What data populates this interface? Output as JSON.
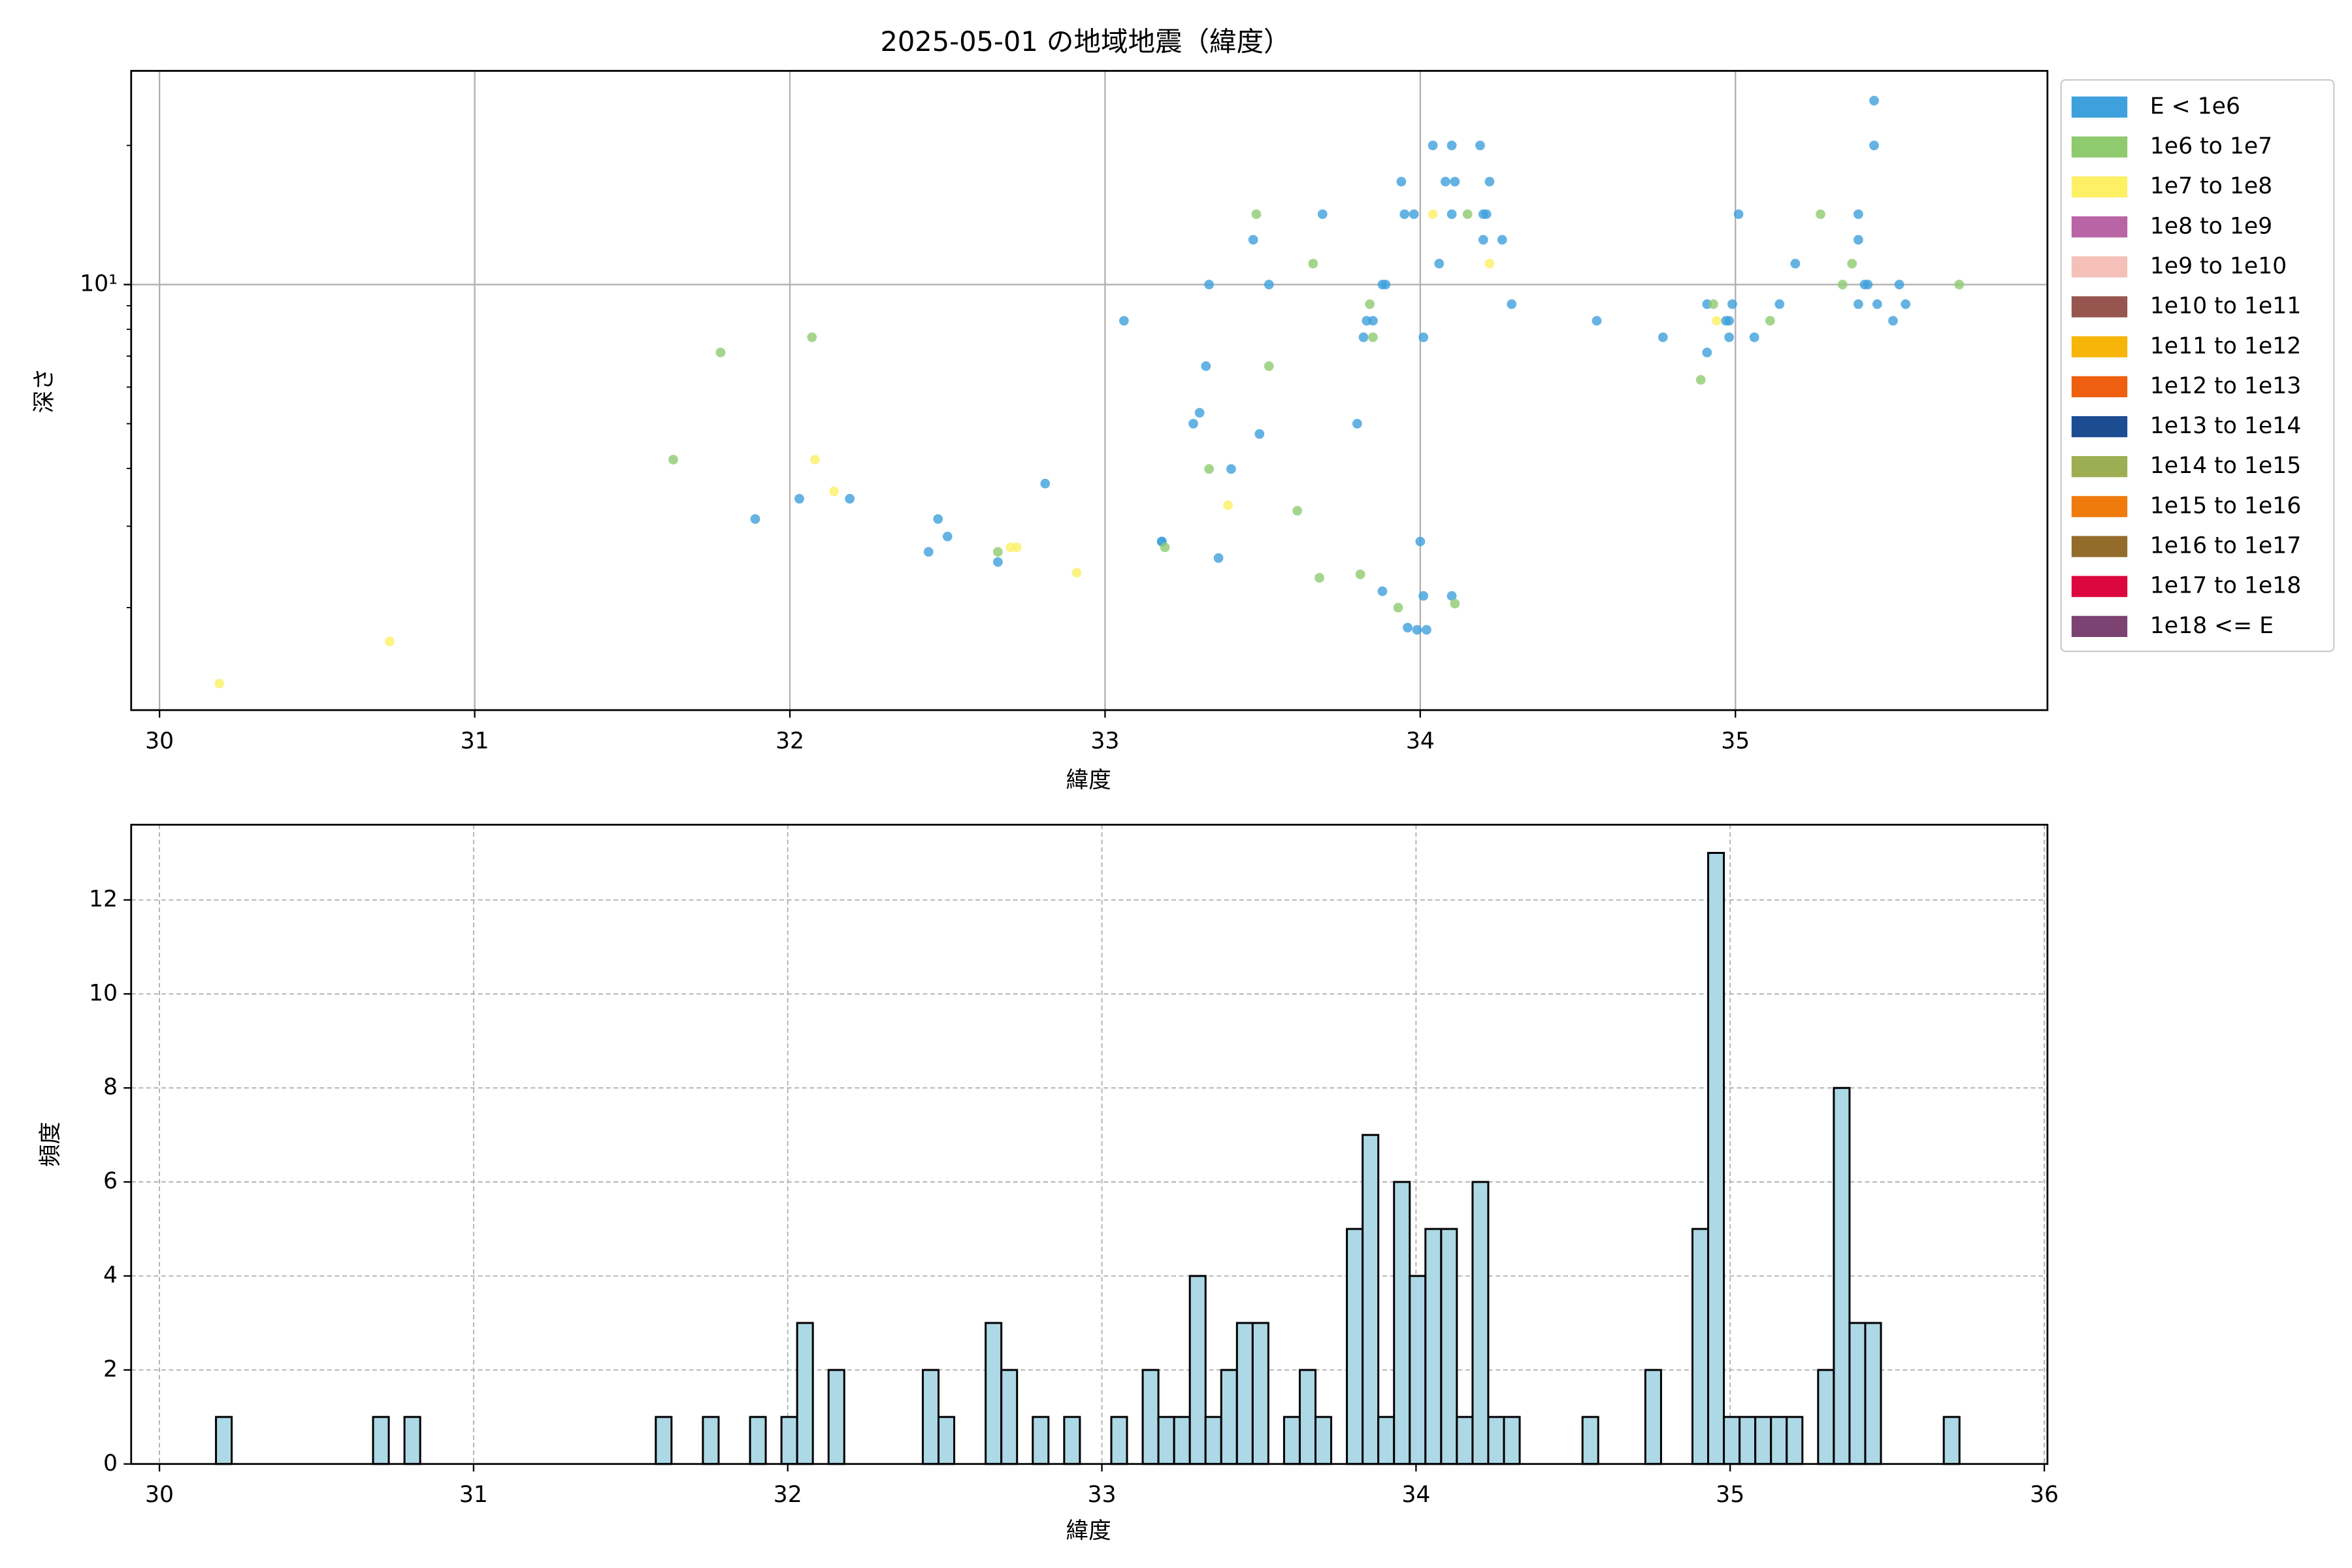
{
  "chart_data": [
    {
      "type": "scatter",
      "title": "2025-05-01 の地域地震（緯度）",
      "xlabel": "緯度",
      "ylabel": "深さ",
      "xlim": [
        29.91,
        35.99
      ],
      "ylim": [
        1.2,
        29
      ],
      "log_y": true,
      "grid": true,
      "legend": "outside right",
      "xticks": [
        30,
        31,
        32,
        33,
        34,
        35
      ],
      "yticks": [
        {
          "value": 10,
          "label": "10¹"
        }
      ],
      "yminorticks": [
        2,
        3,
        4,
        5,
        6,
        7,
        8,
        9,
        20
      ],
      "series": [
        {
          "name": "E < 1e6",
          "color": "#3ea0dc",
          "x": [
            31.89,
            32.03,
            32.19,
            32.44,
            32.47,
            32.5,
            32.66,
            32.81,
            33.06,
            33.18,
            33.18,
            33.28,
            33.3,
            33.32,
            33.33,
            33.36,
            33.4,
            33.47,
            33.49,
            33.52,
            33.69,
            33.8,
            33.82,
            33.83,
            33.85,
            33.88,
            33.89,
            33.94,
            33.95,
            33.96,
            33.98,
            33.99,
            34.0,
            34.01,
            34.01,
            34.02,
            34.04,
            34.06,
            34.08,
            34.1,
            34.1,
            34.11,
            34.19,
            34.2,
            34.2,
            34.22,
            34.21,
            34.26,
            34.29,
            34.56,
            34.77,
            34.91,
            34.91,
            34.97,
            34.98,
            34.98,
            34.99,
            35.01,
            35.06,
            35.14,
            35.19,
            35.39,
            35.39,
            35.39,
            35.41,
            35.42,
            35.44,
            35.44,
            35.45,
            35.5,
            35.52,
            35.54,
            34.1,
            33.88
          ],
          "values": [
            3.11,
            3.44,
            3.44,
            2.64,
            3.11,
            2.85,
            2.51,
            3.71,
            8.35,
            2.78,
            2.78,
            5.0,
            5.28,
            6.66,
            10,
            2.56,
            3.99,
            12.5,
            4.75,
            10,
            14.2,
            5.0,
            7.69,
            8.35,
            8.35,
            10,
            10,
            16.7,
            14.2,
            1.81,
            14.2,
            1.79,
            2.78,
            7.69,
            2.12,
            1.79,
            20.0,
            11.1,
            16.7,
            20.0,
            14.2,
            16.7,
            20.0,
            14.2,
            12.5,
            16.7,
            14.2,
            12.5,
            9.07,
            8.35,
            7.69,
            7.13,
            9.07,
            8.35,
            8.35,
            7.69,
            9.07,
            14.2,
            7.69,
            9.07,
            11.1,
            14.2,
            12.5,
            9.07,
            10,
            10,
            25.0,
            20.0,
            9.07,
            8.35,
            10,
            9.07,
            2.12,
            2.17
          ]
        },
        {
          "name": "1e6 to 1e7",
          "color": "#8fca6f",
          "x": [
            31.63,
            31.78,
            32.07,
            32.66,
            33.19,
            33.33,
            33.48,
            33.52,
            33.61,
            33.66,
            33.68,
            33.81,
            33.84,
            33.85,
            33.93,
            34.11,
            34.15,
            34.89,
            34.93,
            35.11,
            35.27,
            35.34,
            35.37,
            35.71
          ],
          "values": [
            4.18,
            7.13,
            7.69,
            2.64,
            2.7,
            3.99,
            14.2,
            6.66,
            3.24,
            11.1,
            2.32,
            2.36,
            9.07,
            7.69,
            2.0,
            2.04,
            14.2,
            6.22,
            9.07,
            8.35,
            14.2,
            10,
            11.1,
            10
          ]
        },
        {
          "name": "1e7 to 1e8",
          "color": "#fdf065",
          "x": [
            30.19,
            30.73,
            32.08,
            32.14,
            32.7,
            32.72,
            32.91,
            33.39,
            34.04,
            34.22,
            34.94
          ],
          "values": [
            1.37,
            1.69,
            4.18,
            3.57,
            2.7,
            2.7,
            2.38,
            3.33,
            14.2,
            11.1,
            8.35
          ]
        },
        {
          "name": "1e8 to 1e9",
          "color": "#b964a4",
          "x": [],
          "values": []
        },
        {
          "name": "1e9 to 1e10",
          "color": "#f5c0b8",
          "x": [],
          "values": []
        },
        {
          "name": "1e10 to 1e11",
          "color": "#96554f",
          "x": [],
          "values": []
        },
        {
          "name": "1e11 to 1e12",
          "color": "#f7b50a",
          "x": [],
          "values": []
        },
        {
          "name": "1e12 to 1e13",
          "color": "#ee6010",
          "x": [],
          "values": []
        },
        {
          "name": "1e13 to 1e14",
          "color": "#1c4c92",
          "x": [],
          "values": []
        },
        {
          "name": "1e14 to 1e15",
          "color": "#9dae52",
          "x": [],
          "values": []
        },
        {
          "name": "1e15 to 1e16",
          "color": "#ef7b0d",
          "x": [],
          "values": []
        },
        {
          "name": "1e16 to 1e17",
          "color": "#936c2c",
          "x": [],
          "values": []
        },
        {
          "name": "1e17 to 1e18",
          "color": "#dc073e",
          "x": [],
          "values": []
        },
        {
          "name": "1e18 <= E",
          "color": "#7c4372",
          "x": [],
          "values": []
        }
      ]
    },
    {
      "type": "histogram",
      "xlabel": "緯度",
      "ylabel": "頻度",
      "color": "#add8e6",
      "edgecolor": "#000000",
      "grid": true,
      "grid_style": "dashed",
      "xlim": [
        29.91,
        36.01
      ],
      "ylim": [
        0,
        13.6
      ],
      "xticks": [
        30,
        31,
        32,
        33,
        34,
        35,
        36
      ],
      "yticks": [
        0,
        2,
        4,
        6,
        8,
        10,
        12
      ],
      "bins": [
        30.18,
        30.23,
        30.28,
        30.33,
        30.38,
        30.43,
        30.48,
        30.53,
        30.58,
        30.63,
        30.68,
        30.73,
        30.78,
        30.83,
        30.88,
        30.93,
        30.98,
        31.03,
        31.08,
        31.13,
        31.18,
        31.23,
        31.28,
        31.33,
        31.38,
        31.43,
        31.48,
        31.53,
        31.58,
        31.63,
        31.68,
        31.73,
        31.78,
        31.83,
        31.88,
        31.93,
        31.98,
        32.03,
        32.08,
        32.13,
        32.18,
        32.23,
        32.28,
        32.33,
        32.38,
        32.43,
        32.48,
        32.53,
        32.58,
        32.63,
        32.68,
        32.73,
        32.78,
        32.83,
        32.88,
        32.93,
        32.98,
        33.03,
        33.08,
        33.13,
        33.18,
        33.23,
        33.28,
        33.33,
        33.38,
        33.43,
        33.48,
        33.53,
        33.58,
        33.63,
        33.68,
        33.73,
        33.78,
        33.83,
        33.88,
        33.93,
        33.98,
        34.03,
        34.08,
        34.13,
        34.18,
        34.23,
        34.28,
        34.33,
        34.38,
        34.43,
        34.48,
        34.53,
        34.58,
        34.63,
        34.68,
        34.73,
        34.78,
        34.83,
        34.88,
        34.93,
        34.98,
        35.03,
        35.08,
        35.13,
        35.18,
        35.23,
        35.28,
        35.33,
        35.38,
        35.43,
        35.48,
        35.53,
        35.58,
        35.63,
        35.68,
        35.73
      ],
      "values": [
        1,
        0,
        0,
        0,
        0,
        0,
        0,
        0,
        0,
        0,
        1,
        0,
        1,
        0,
        0,
        0,
        0,
        0,
        0,
        0,
        0,
        0,
        0,
        0,
        0,
        0,
        0,
        0,
        1,
        0,
        0,
        1,
        0,
        0,
        1,
        0,
        1,
        3,
        0,
        2,
        0,
        0,
        0,
        0,
        0,
        2,
        1,
        0,
        0,
        3,
        2,
        0,
        1,
        0,
        1,
        0,
        0,
        1,
        0,
        2,
        1,
        1,
        4,
        1,
        2,
        3,
        3,
        0,
        1,
        2,
        1,
        0,
        5,
        7,
        1,
        6,
        4,
        5,
        5,
        1,
        6,
        1,
        1,
        0,
        0,
        0,
        0,
        1,
        0,
        0,
        0,
        2,
        0,
        0,
        5,
        13,
        1,
        1,
        1,
        1,
        1,
        0,
        2,
        8,
        3,
        3,
        0,
        0,
        0,
        0,
        1
      ]
    }
  ]
}
